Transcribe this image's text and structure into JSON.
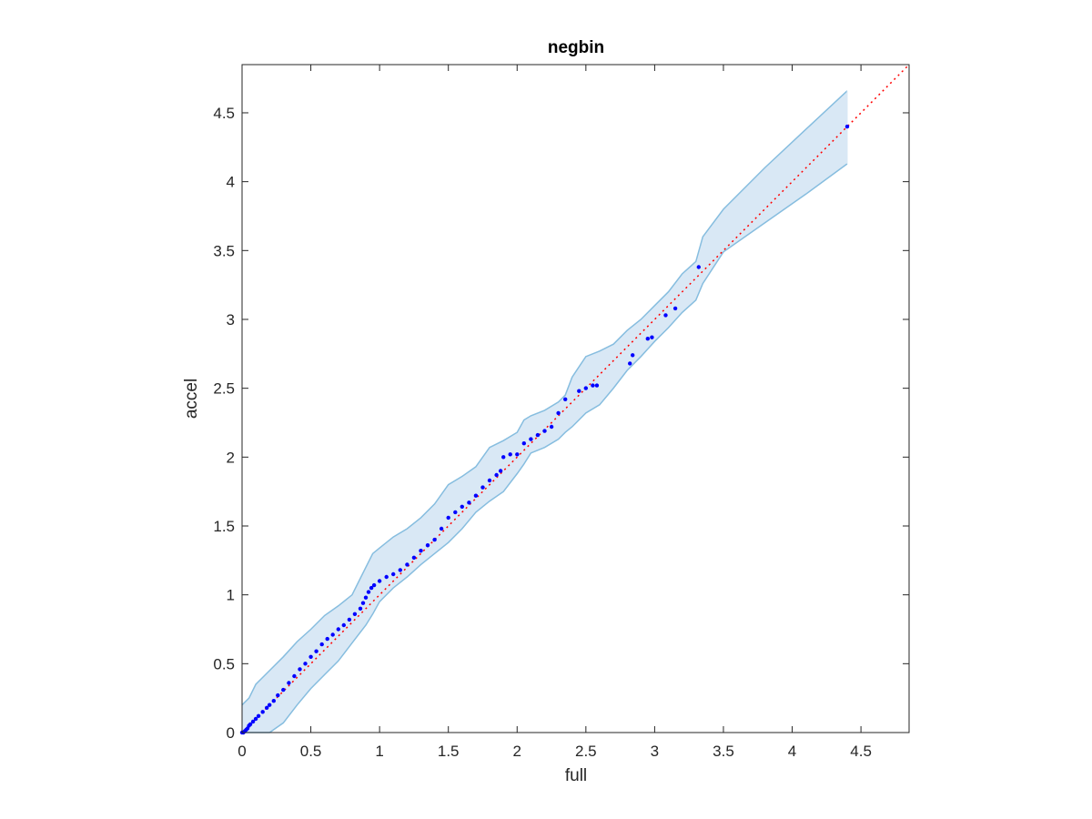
{
  "chart_data": {
    "type": "scatter",
    "title": "negbin",
    "xlabel": "full",
    "ylabel": "accel",
    "xlim": [
      0,
      4.85
    ],
    "ylim": [
      0,
      4.85
    ],
    "xticks": [
      0,
      0.5,
      1,
      1.5,
      2,
      2.5,
      3,
      3.5,
      4,
      4.5
    ],
    "yticks": [
      0,
      0.5,
      1,
      1.5,
      2,
      2.5,
      3,
      3.5,
      4,
      4.5
    ],
    "xtick_labels": [
      "0",
      "0.5",
      "1",
      "1.5",
      "2",
      "2.5",
      "3",
      "3.5",
      "4",
      "4.5"
    ],
    "ytick_labels": [
      "0",
      "0.5",
      "1",
      "1.5",
      "2",
      "2.5",
      "3",
      "3.5",
      "4",
      "4.5"
    ],
    "grid": false,
    "colors": {
      "points": "#0000ff",
      "reference_line": "#ff0000",
      "band_fill": "#d9e8f5",
      "band_edge": "#86bddf",
      "axes": "#262626"
    },
    "reference_line": {
      "style": "dotted",
      "from": [
        0,
        0
      ],
      "to": [
        4.85,
        4.85
      ]
    },
    "confidence_band": {
      "x": [
        0,
        0.05,
        0.1,
        0.2,
        0.3,
        0.4,
        0.5,
        0.6,
        0.7,
        0.8,
        0.9,
        0.95,
        1.0,
        1.1,
        1.2,
        1.3,
        1.4,
        1.5,
        1.6,
        1.7,
        1.8,
        1.9,
        2.0,
        2.05,
        2.1,
        2.2,
        2.3,
        2.35,
        2.4,
        2.5,
        2.6,
        2.7,
        2.8,
        2.9,
        3.0,
        3.1,
        3.2,
        3.3,
        3.35,
        3.5,
        3.8,
        4.1,
        4.4
      ],
      "upper": [
        0.2,
        0.25,
        0.35,
        0.45,
        0.55,
        0.66,
        0.75,
        0.85,
        0.92,
        1.0,
        1.2,
        1.3,
        1.34,
        1.42,
        1.48,
        1.56,
        1.66,
        1.8,
        1.86,
        1.93,
        2.07,
        2.12,
        2.18,
        2.27,
        2.3,
        2.34,
        2.4,
        2.45,
        2.58,
        2.73,
        2.77,
        2.82,
        2.92,
        3.0,
        3.1,
        3.2,
        3.33,
        3.42,
        3.6,
        3.8,
        4.1,
        4.38,
        4.66
      ],
      "lower": [
        0,
        0,
        0,
        0,
        0.07,
        0.2,
        0.32,
        0.42,
        0.52,
        0.65,
        0.78,
        0.86,
        0.95,
        1.05,
        1.13,
        1.22,
        1.3,
        1.38,
        1.48,
        1.6,
        1.68,
        1.75,
        1.88,
        1.95,
        2.03,
        2.07,
        2.13,
        2.18,
        2.22,
        2.32,
        2.38,
        2.5,
        2.63,
        2.73,
        2.84,
        2.94,
        3.05,
        3.14,
        3.26,
        3.49,
        3.7,
        3.91,
        4.13
      ]
    },
    "series": [
      {
        "x": [
          0,
          0.01,
          0.02,
          0.03,
          0.04,
          0.05,
          0.06,
          0.08,
          0.1,
          0.12,
          0.15,
          0.18,
          0.2,
          0.23,
          0.26,
          0.3,
          0.34,
          0.38,
          0.42,
          0.46,
          0.5,
          0.54,
          0.58,
          0.62,
          0.66,
          0.7,
          0.74,
          0.78,
          0.82,
          0.86,
          0.88,
          0.9,
          0.92,
          0.94,
          0.96,
          1.0,
          1.05,
          1.1,
          1.15,
          1.2,
          1.25,
          1.3,
          1.35,
          1.4,
          1.45,
          1.5,
          1.55,
          1.6,
          1.65,
          1.7,
          1.75,
          1.8,
          1.85,
          1.88,
          1.9,
          1.95,
          2.0,
          2.05,
          2.1,
          2.15,
          2.2,
          2.25,
          2.3,
          2.35,
          2.45,
          2.5,
          2.55,
          2.58,
          2.82,
          2.84,
          2.95,
          2.98,
          3.08,
          3.15,
          3.32,
          4.4
        ],
        "y": [
          0,
          0,
          0.01,
          0.02,
          0.03,
          0.05,
          0.06,
          0.08,
          0.1,
          0.12,
          0.15,
          0.18,
          0.2,
          0.23,
          0.27,
          0.31,
          0.36,
          0.41,
          0.46,
          0.5,
          0.55,
          0.59,
          0.64,
          0.68,
          0.71,
          0.75,
          0.78,
          0.82,
          0.86,
          0.9,
          0.94,
          0.98,
          1.02,
          1.05,
          1.07,
          1.1,
          1.13,
          1.15,
          1.18,
          1.22,
          1.27,
          1.32,
          1.36,
          1.4,
          1.48,
          1.56,
          1.6,
          1.64,
          1.67,
          1.72,
          1.78,
          1.83,
          1.87,
          1.9,
          2.0,
          2.02,
          2.02,
          2.1,
          2.13,
          2.16,
          2.19,
          2.22,
          2.32,
          2.42,
          2.48,
          2.5,
          2.52,
          2.52,
          2.68,
          2.74,
          2.86,
          2.87,
          3.03,
          3.08,
          3.38,
          4.4
        ]
      }
    ]
  }
}
